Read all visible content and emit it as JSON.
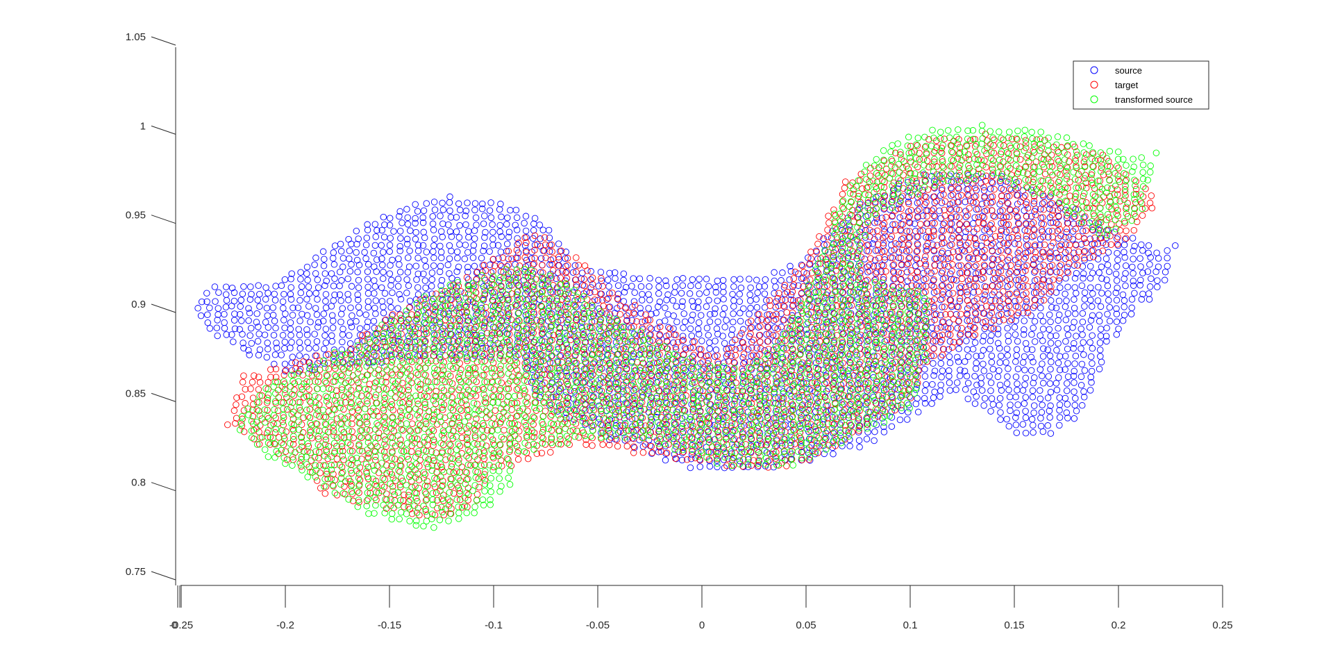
{
  "window": {
    "title": ""
  },
  "chart_data": {
    "type": "scatter",
    "title": "",
    "xlabel": "",
    "ylabel": "",
    "xlim": [
      -0.25,
      0.25
    ],
    "ylim": [
      0.75,
      1.05
    ],
    "x_ticks": [
      -0.25,
      -0.2,
      -0.15,
      -0.1,
      -0.05,
      0,
      0.05,
      0.1,
      0.15,
      0.2,
      0.25
    ],
    "x_tick_labels": [
      "-0.25",
      "-0.2",
      "-0.15",
      "-0.1",
      "-0.05",
      "0",
      "0.05",
      "0.1",
      "0.15",
      "0.2",
      "0.25"
    ],
    "x_extra_tick_label": "0",
    "y_ticks": [
      0.75,
      0.8,
      0.85,
      0.9,
      0.95,
      1,
      1.05
    ],
    "y_tick_labels": [
      "0.75",
      "0.8",
      "0.85",
      "0.9",
      "0.95",
      "1",
      "1.05"
    ],
    "marker": "open-circle",
    "grid": false,
    "legend_position": "top-right",
    "series": [
      {
        "name": "source",
        "color": "#0000ff",
        "region_outline": [
          [
            -0.245,
            0.903
          ],
          [
            -0.235,
            0.915
          ],
          [
            -0.205,
            0.917
          ],
          [
            -0.18,
            0.935
          ],
          [
            -0.155,
            0.953
          ],
          [
            -0.125,
            0.965
          ],
          [
            -0.095,
            0.962
          ],
          [
            -0.075,
            0.95
          ],
          [
            -0.06,
            0.925
          ],
          [
            -0.03,
            0.92
          ],
          [
            0.0,
            0.918
          ],
          [
            0.03,
            0.92
          ],
          [
            0.05,
            0.93
          ],
          [
            0.065,
            0.95
          ],
          [
            0.075,
            0.96
          ],
          [
            0.1,
            0.975
          ],
          [
            0.12,
            0.98
          ],
          [
            0.15,
            0.975
          ],
          [
            0.175,
            0.96
          ],
          [
            0.2,
            0.945
          ],
          [
            0.22,
            0.935
          ],
          [
            0.228,
            0.94
          ],
          [
            0.225,
            0.92
          ],
          [
            0.21,
            0.9
          ],
          [
            0.195,
            0.88
          ],
          [
            0.19,
            0.86
          ],
          [
            0.18,
            0.84
          ],
          [
            0.165,
            0.828
          ],
          [
            0.15,
            0.83
          ],
          [
            0.135,
            0.845
          ],
          [
            0.12,
            0.855
          ],
          [
            0.1,
            0.84
          ],
          [
            0.08,
            0.825
          ],
          [
            0.05,
            0.815
          ],
          [
            0.02,
            0.81
          ],
          [
            0.0,
            0.81
          ],
          [
            -0.03,
            0.82
          ],
          [
            -0.06,
            0.835
          ],
          [
            -0.08,
            0.85
          ],
          [
            -0.09,
            0.875
          ],
          [
            -0.14,
            0.872
          ],
          [
            -0.2,
            0.865
          ],
          [
            -0.225,
            0.88
          ],
          [
            -0.24,
            0.892
          ]
        ]
      },
      {
        "name": "target",
        "color": "#ff0000",
        "region_outline": [
          [
            -0.228,
            0.835
          ],
          [
            -0.222,
            0.865
          ],
          [
            -0.2,
            0.87
          ],
          [
            -0.17,
            0.88
          ],
          [
            -0.15,
            0.9
          ],
          [
            -0.12,
            0.915
          ],
          [
            -0.1,
            0.93
          ],
          [
            -0.08,
            0.945
          ],
          [
            -0.06,
            0.93
          ],
          [
            -0.04,
            0.91
          ],
          [
            -0.015,
            0.89
          ],
          [
            0.01,
            0.875
          ],
          [
            0.03,
            0.905
          ],
          [
            0.05,
            0.93
          ],
          [
            0.07,
            0.975
          ],
          [
            0.1,
            0.995
          ],
          [
            0.13,
            1.0
          ],
          [
            0.16,
            0.998
          ],
          [
            0.19,
            0.99
          ],
          [
            0.21,
            0.975
          ],
          [
            0.22,
            0.96
          ],
          [
            0.2,
            0.935
          ],
          [
            0.18,
            0.925
          ],
          [
            0.16,
            0.9
          ],
          [
            0.13,
            0.885
          ],
          [
            0.11,
            0.87
          ],
          [
            0.1,
            0.85
          ],
          [
            0.075,
            0.83
          ],
          [
            0.05,
            0.815
          ],
          [
            0.03,
            0.81
          ],
          [
            0.0,
            0.815
          ],
          [
            -0.03,
            0.82
          ],
          [
            -0.06,
            0.825
          ],
          [
            -0.1,
            0.81
          ],
          [
            -0.11,
            0.79
          ],
          [
            -0.13,
            0.782
          ],
          [
            -0.155,
            0.79
          ],
          [
            -0.18,
            0.795
          ],
          [
            -0.19,
            0.81
          ],
          [
            -0.205,
            0.82
          ]
        ]
      },
      {
        "name": "transformed source",
        "color": "#00ff00",
        "region_outline": [
          [
            -0.225,
            0.835
          ],
          [
            -0.21,
            0.858
          ],
          [
            -0.19,
            0.87
          ],
          [
            -0.165,
            0.883
          ],
          [
            -0.14,
            0.905
          ],
          [
            -0.115,
            0.918
          ],
          [
            -0.09,
            0.925
          ],
          [
            -0.07,
            0.92
          ],
          [
            -0.045,
            0.9
          ],
          [
            -0.02,
            0.882
          ],
          [
            0.0,
            0.87
          ],
          [
            0.02,
            0.868
          ],
          [
            0.04,
            0.89
          ],
          [
            0.055,
            0.925
          ],
          [
            0.065,
            0.96
          ],
          [
            0.08,
            0.985
          ],
          [
            0.1,
            1.0
          ],
          [
            0.13,
            1.005
          ],
          [
            0.16,
            1.003
          ],
          [
            0.19,
            0.993
          ],
          [
            0.215,
            0.985
          ],
          [
            0.22,
            0.995
          ],
          [
            0.21,
            0.95
          ],
          [
            0.19,
            0.94
          ],
          [
            0.17,
            0.96
          ],
          [
            0.14,
            0.975
          ],
          [
            0.11,
            0.97
          ],
          [
            0.08,
            0.95
          ],
          [
            0.075,
            0.92
          ],
          [
            0.108,
            0.91
          ],
          [
            0.11,
            0.88
          ],
          [
            0.1,
            0.845
          ],
          [
            0.075,
            0.83
          ],
          [
            0.05,
            0.815
          ],
          [
            0.03,
            0.81
          ],
          [
            0.005,
            0.815
          ],
          [
            -0.02,
            0.825
          ],
          [
            -0.05,
            0.828
          ],
          [
            -0.09,
            0.82
          ],
          [
            -0.09,
            0.8
          ],
          [
            -0.11,
            0.785
          ],
          [
            -0.13,
            0.778
          ],
          [
            -0.16,
            0.785
          ],
          [
            -0.18,
            0.8
          ],
          [
            -0.205,
            0.815
          ]
        ]
      }
    ]
  }
}
